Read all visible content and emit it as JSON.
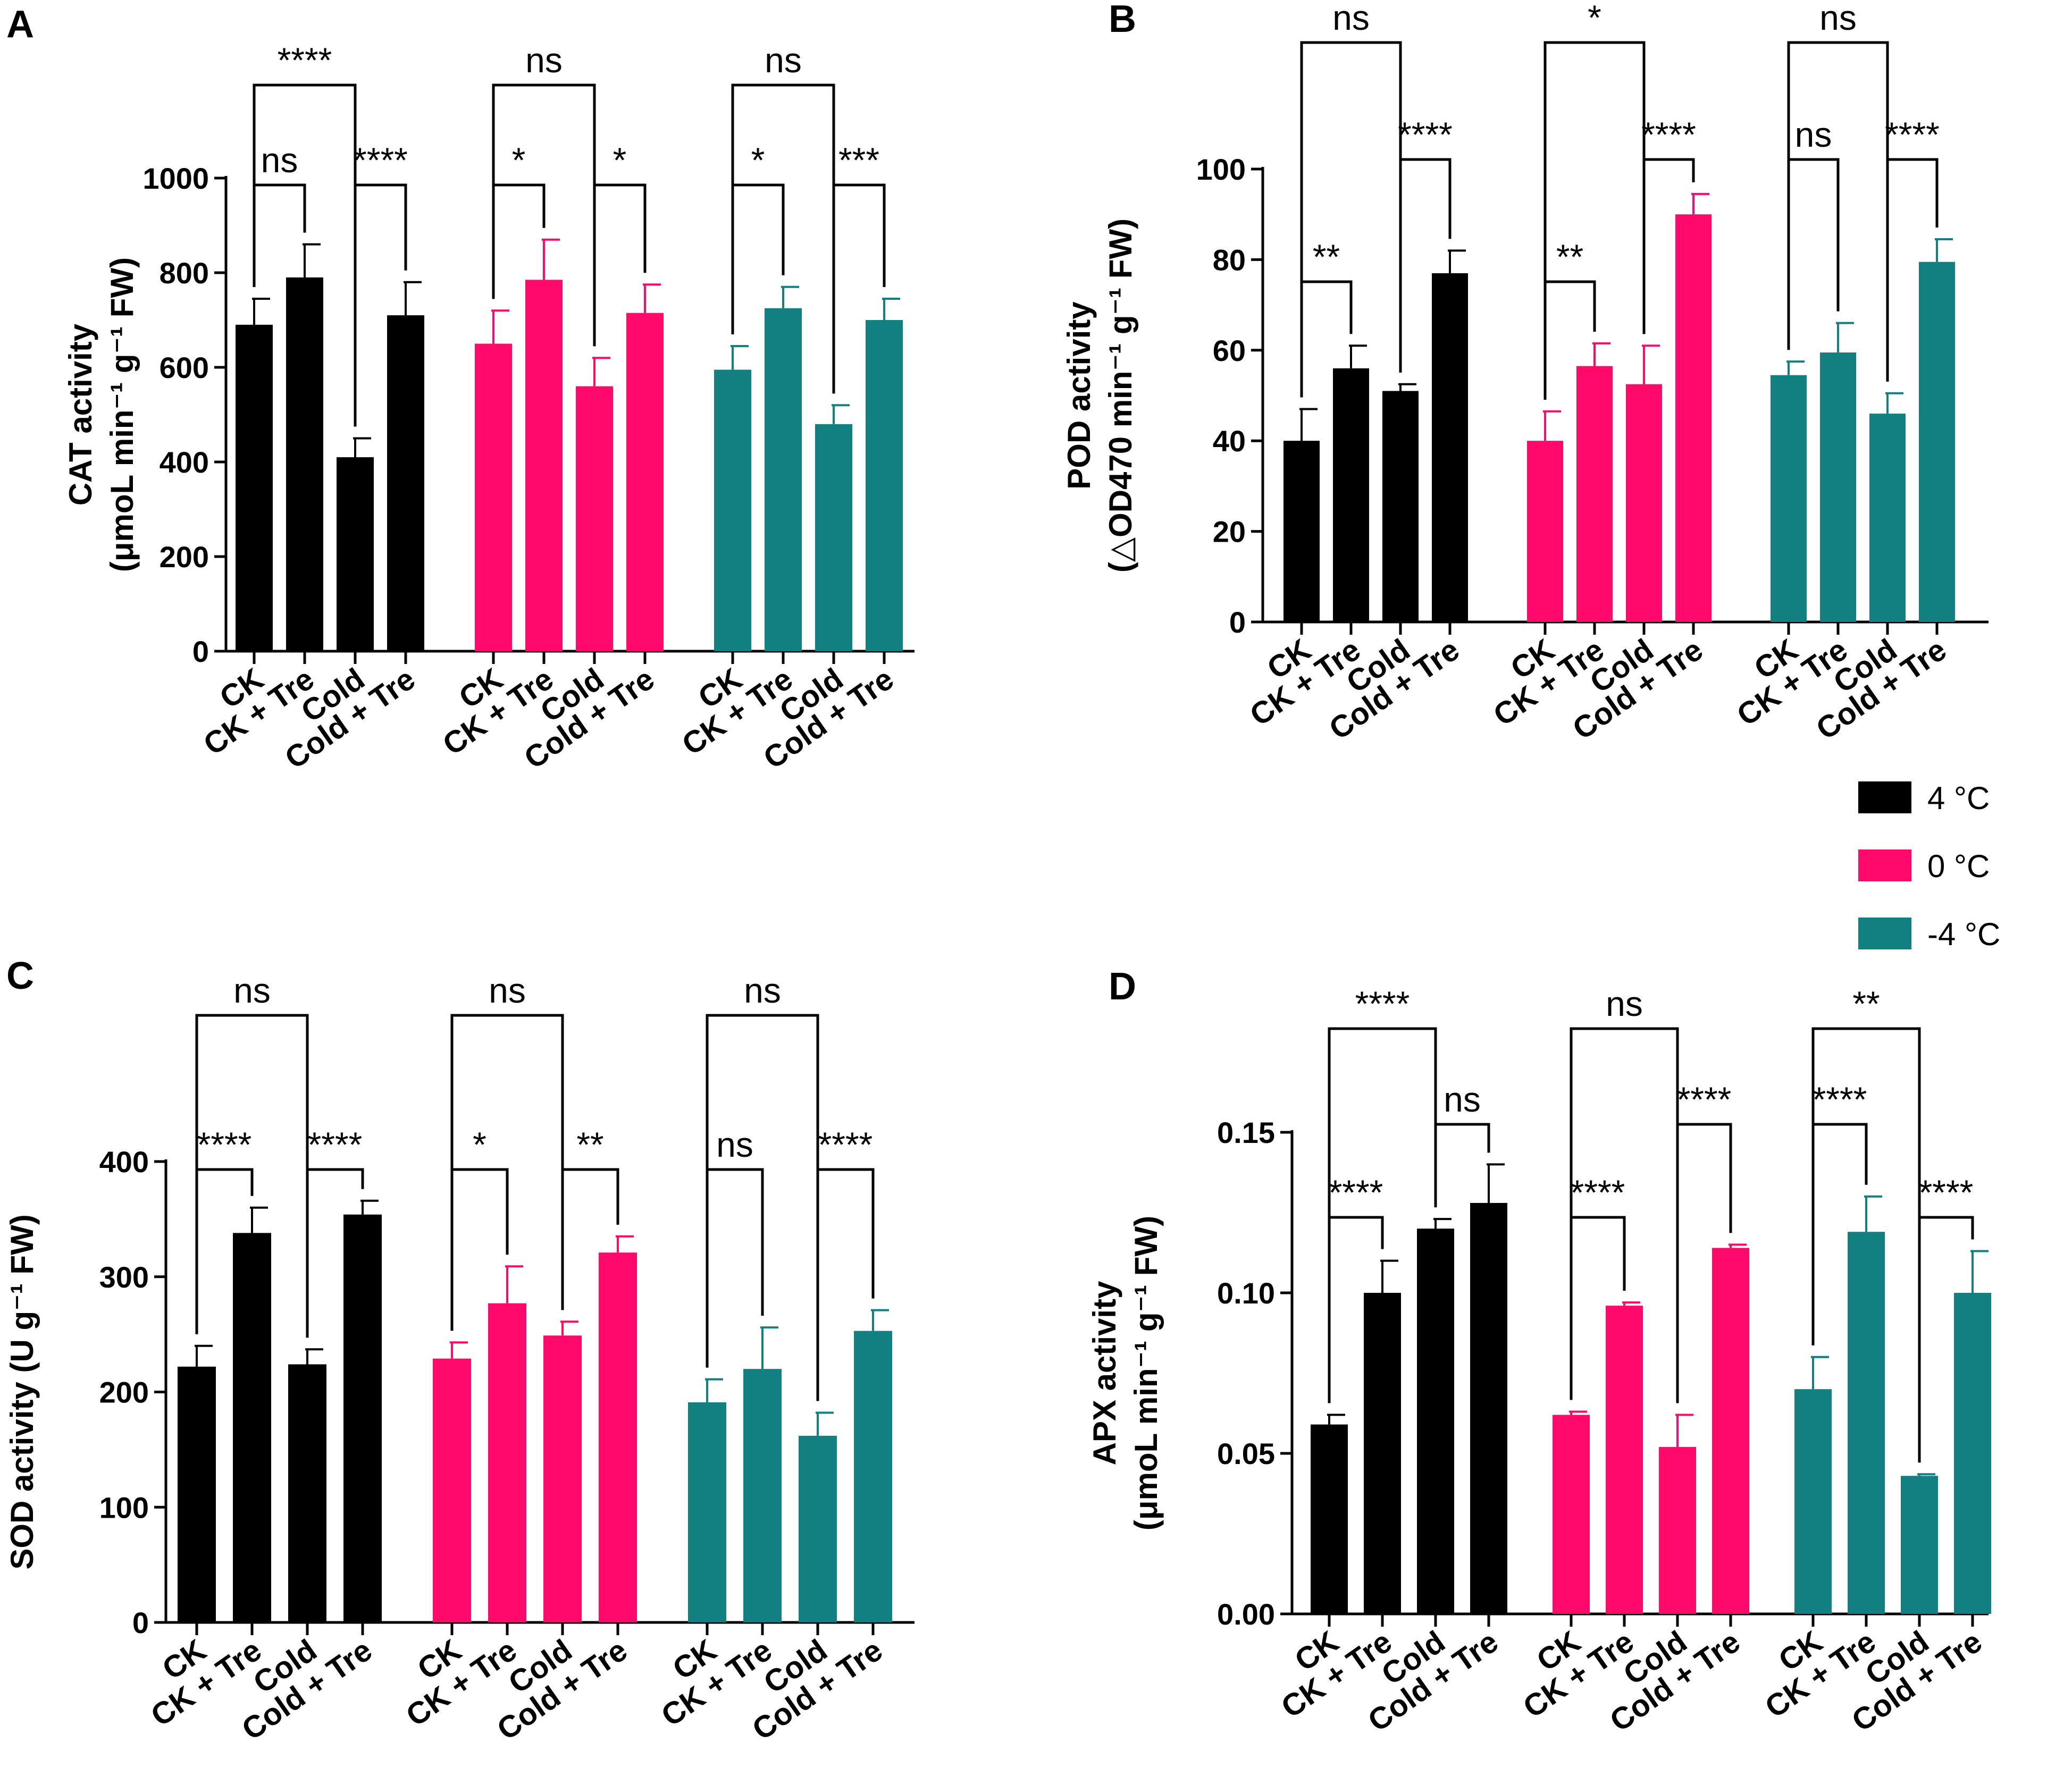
{
  "figure": {
    "legend": [
      {
        "label": "4 °C",
        "color": "#000000"
      },
      {
        "label": "0 °C",
        "color": "#ff0a6b"
      },
      {
        "label": "-4 °C",
        "color": "#128080"
      }
    ]
  },
  "chart_data": [
    {
      "panel": "A",
      "type": "bar",
      "ylabel_line1": "CAT activity",
      "ylabel_line2": "(μmoL min⁻¹ g⁻¹ FW)",
      "ylim": [
        0,
        1000
      ],
      "yticks": [
        "0",
        "200",
        "400",
        "600",
        "800",
        "1000"
      ],
      "groups": [
        "4 °C",
        "0 °C",
        "-4 °C"
      ],
      "categories": [
        "CK",
        "CK + Tre",
        "Cold",
        "Cold + Tre"
      ],
      "series": [
        {
          "name": "4 °C",
          "values": [
            690,
            790,
            410,
            710
          ],
          "errors": [
            55,
            70,
            40,
            70
          ]
        },
        {
          "name": "0 °C",
          "values": [
            650,
            785,
            560,
            715
          ],
          "errors": [
            70,
            85,
            60,
            60
          ]
        },
        {
          "name": "-4 °C",
          "values": [
            595,
            725,
            480,
            700
          ],
          "errors": [
            50,
            45,
            40,
            45
          ]
        }
      ],
      "significance": [
        {
          "group": 0,
          "a": 0,
          "b": 1,
          "label": "ns",
          "level": 1
        },
        {
          "group": 0,
          "a": 2,
          "b": 3,
          "label": "****",
          "level": 1
        },
        {
          "group": 0,
          "a": 0,
          "b": 2,
          "label": "****",
          "level": 2
        },
        {
          "group": 1,
          "a": 0,
          "b": 1,
          "label": "*",
          "level": 1
        },
        {
          "group": 1,
          "a": 2,
          "b": 3,
          "label": "*",
          "level": 1
        },
        {
          "group": 1,
          "a": 0,
          "b": 2,
          "label": "ns",
          "level": 2
        },
        {
          "group": 2,
          "a": 0,
          "b": 1,
          "label": "*",
          "level": 1
        },
        {
          "group": 2,
          "a": 2,
          "b": 3,
          "label": "***",
          "level": 1
        },
        {
          "group": 2,
          "a": 0,
          "b": 2,
          "label": "ns",
          "level": 2
        }
      ]
    },
    {
      "panel": "B",
      "type": "bar",
      "ylabel_line1": "POD activity",
      "ylabel_line2": "(△OD470 min⁻¹ g⁻¹ FW)",
      "ylim": [
        0,
        100
      ],
      "yticks": [
        "0",
        "20",
        "40",
        "60",
        "80",
        "100"
      ],
      "groups": [
        "4 °C",
        "0 °C",
        "-4 °C"
      ],
      "categories": [
        "CK",
        "CK + Tre",
        "Cold",
        "Cold + Tre"
      ],
      "series": [
        {
          "name": "4 °C",
          "values": [
            40,
            56,
            51,
            77
          ],
          "errors": [
            7,
            5,
            1.5,
            5
          ]
        },
        {
          "name": "0 °C",
          "values": [
            40,
            56.5,
            52.5,
            90
          ],
          "errors": [
            6.5,
            5,
            8.5,
            4.5
          ]
        },
        {
          "name": "-4 °C",
          "values": [
            54.5,
            59.5,
            46,
            79.5
          ],
          "errors": [
            3,
            6.5,
            4.5,
            5
          ]
        }
      ],
      "significance": [
        {
          "group": 0,
          "a": 0,
          "b": 1,
          "label": "**",
          "level": 1
        },
        {
          "group": 0,
          "a": 2,
          "b": 3,
          "label": "****",
          "level": 2
        },
        {
          "group": 0,
          "a": 0,
          "b": 2,
          "label": "ns",
          "level": 3
        },
        {
          "group": 1,
          "a": 0,
          "b": 1,
          "label": "**",
          "level": 1
        },
        {
          "group": 1,
          "a": 2,
          "b": 3,
          "label": "****",
          "level": 2
        },
        {
          "group": 1,
          "a": 0,
          "b": 2,
          "label": "*",
          "level": 3
        },
        {
          "group": 2,
          "a": 0,
          "b": 1,
          "label": "ns",
          "level": 2
        },
        {
          "group": 2,
          "a": 2,
          "b": 3,
          "label": "****",
          "level": 2
        },
        {
          "group": 2,
          "a": 0,
          "b": 2,
          "label": "ns",
          "level": 3
        }
      ]
    },
    {
      "panel": "C",
      "type": "bar",
      "ylabel_line1": "SOD activity (U g⁻¹ FW)",
      "ylabel_line2": "",
      "ylim": [
        0,
        400
      ],
      "yticks": [
        "0",
        "100",
        "200",
        "300",
        "400"
      ],
      "groups": [
        "4 °C",
        "0 °C",
        "-4 °C"
      ],
      "categories": [
        "CK",
        "CK + Tre",
        "Cold",
        "Cold + Tre"
      ],
      "series": [
        {
          "name": "4 °C",
          "values": [
            222,
            338,
            224,
            354
          ],
          "errors": [
            18,
            22,
            13,
            12
          ]
        },
        {
          "name": "0 °C",
          "values": [
            229,
            277,
            249,
            321
          ],
          "errors": [
            14,
            32,
            12,
            14
          ]
        },
        {
          "name": "-4 °C",
          "values": [
            191,
            220,
            162,
            253
          ],
          "errors": [
            20,
            36,
            20,
            18
          ]
        }
      ],
      "significance": [
        {
          "group": 0,
          "a": 0,
          "b": 1,
          "label": "****",
          "level": 1
        },
        {
          "group": 0,
          "a": 2,
          "b": 3,
          "label": "****",
          "level": 1
        },
        {
          "group": 0,
          "a": 0,
          "b": 2,
          "label": "ns",
          "level": 2
        },
        {
          "group": 1,
          "a": 0,
          "b": 1,
          "label": "*",
          "level": 1
        },
        {
          "group": 1,
          "a": 2,
          "b": 3,
          "label": "**",
          "level": 1
        },
        {
          "group": 1,
          "a": 0,
          "b": 2,
          "label": "ns",
          "level": 2
        },
        {
          "group": 2,
          "a": 0,
          "b": 1,
          "label": "ns",
          "level": 1
        },
        {
          "group": 2,
          "a": 2,
          "b": 3,
          "label": "****",
          "level": 1
        },
        {
          "group": 2,
          "a": 0,
          "b": 2,
          "label": "ns",
          "level": 2
        }
      ]
    },
    {
      "panel": "D",
      "type": "bar",
      "ylabel_line1": "APX activity",
      "ylabel_line2": "(μmoL min⁻¹ g⁻¹ FW)",
      "ylim": [
        0,
        0.15
      ],
      "yticks": [
        "0.00",
        "0.05",
        "0.10",
        "0.15"
      ],
      "groups": [
        "4 °C",
        "0 °C",
        "-4 °C"
      ],
      "categories": [
        "CK",
        "CK + Tre",
        "Cold",
        "Cold + Tre"
      ],
      "series": [
        {
          "name": "4 °C",
          "values": [
            0.059,
            0.1,
            0.12,
            0.128
          ],
          "errors": [
            0.003,
            0.01,
            0.003,
            0.012
          ]
        },
        {
          "name": "0 °C",
          "values": [
            0.062,
            0.096,
            0.052,
            0.114
          ],
          "errors": [
            0.001,
            0.001,
            0.01,
            0.001
          ]
        },
        {
          "name": "-4 °C",
          "values": [
            0.07,
            0.119,
            0.043,
            0.1
          ],
          "errors": [
            0.01,
            0.011,
            0.0005,
            0.013
          ]
        }
      ],
      "significance": [
        {
          "group": 0,
          "a": 0,
          "b": 1,
          "label": "****",
          "level": 1
        },
        {
          "group": 0,
          "a": 2,
          "b": 3,
          "label": "ns",
          "level": 2
        },
        {
          "group": 0,
          "a": 0,
          "b": 2,
          "label": "****",
          "level": 3
        },
        {
          "group": 1,
          "a": 0,
          "b": 1,
          "label": "****",
          "level": 1
        },
        {
          "group": 1,
          "a": 2,
          "b": 3,
          "label": "****",
          "level": 2
        },
        {
          "group": 1,
          "a": 0,
          "b": 2,
          "label": "ns",
          "level": 3
        },
        {
          "group": 2,
          "a": 0,
          "b": 1,
          "label": "****",
          "level": 2
        },
        {
          "group": 2,
          "a": 2,
          "b": 3,
          "label": "****",
          "level": 1
        },
        {
          "group": 2,
          "a": 0,
          "b": 2,
          "label": "**",
          "level": 3
        }
      ]
    }
  ]
}
